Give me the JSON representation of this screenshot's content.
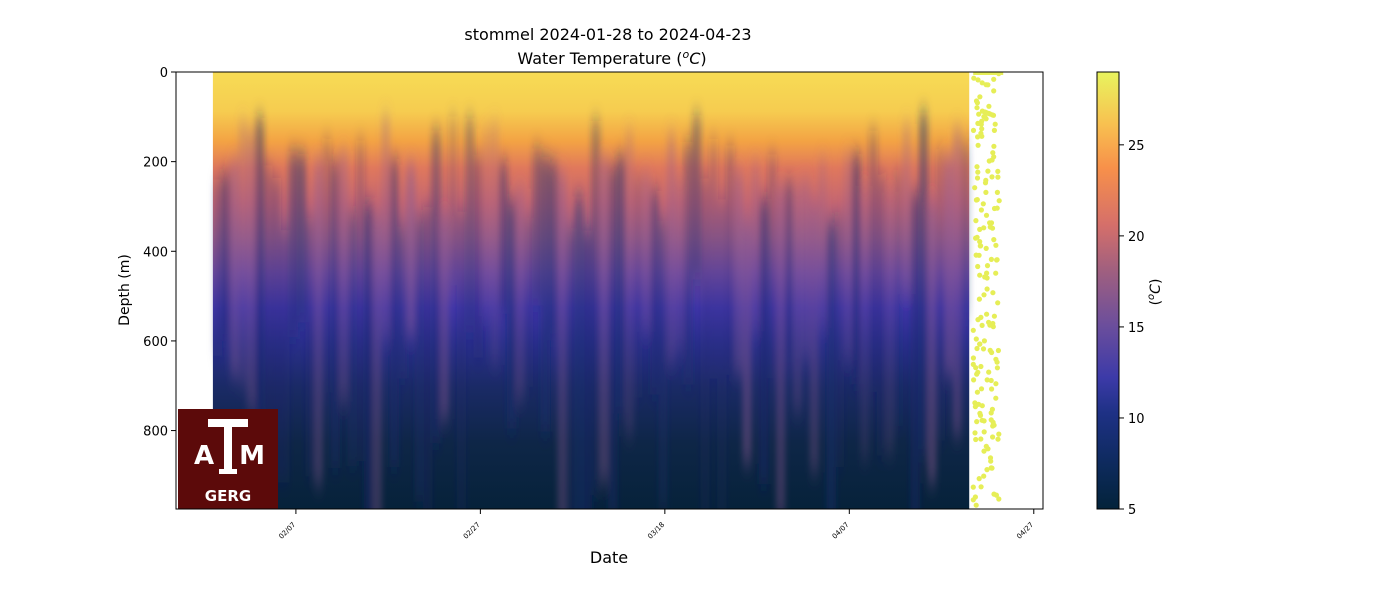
{
  "chart_data": {
    "type": "heatmap",
    "title": "stommel 2024-01-28 to 2024-04-23",
    "subtitle": "Water Temperature (",
    "subtitle_unit_base": "o",
    "subtitle_unit_letter": "C",
    "subtitle_close": ")",
    "xlabel": "Date",
    "ylabel": "Depth (m)",
    "colorbar_label": "(",
    "colorbar_unit_base": "o",
    "colorbar_unit_letter": "C",
    "colorbar_close": ")",
    "x_ticks": [
      "02/07",
      "02/27",
      "03/18",
      "04/07",
      "04/27"
    ],
    "x_tick_days": [
      10,
      30,
      50,
      70,
      90
    ],
    "x_range_days": [
      -3,
      91
    ],
    "data_start_day": 1,
    "data_end_day": 83,
    "y_ticks": [
      0,
      200,
      400,
      600,
      800
    ],
    "ylim": [
      975,
      0
    ],
    "color_ticks": [
      5,
      10,
      15,
      20,
      25
    ],
    "color_range": [
      5,
      29
    ],
    "colormap": "thermal",
    "surface_profile": {
      "depth": [
        0,
        100,
        200,
        300,
        400,
        500,
        600,
        700,
        800,
        975
      ],
      "temperature": [
        27.5,
        25.5,
        20.5,
        17.5,
        14,
        11.5,
        9.5,
        8,
        6.8,
        5.5
      ]
    },
    "yellow_dots_note": "",
    "grid": false,
    "legend": "colorbar-right"
  },
  "logo": {
    "text": "GERG",
    "letters": "ATM"
  }
}
